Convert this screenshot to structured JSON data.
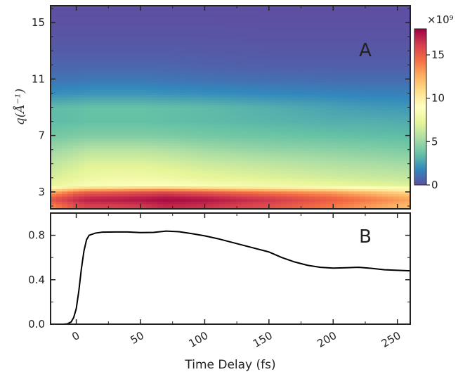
{
  "chart_data": [
    {
      "type": "heatmap",
      "panel_label": "A",
      "ylabel": "q(Å⁻¹)",
      "xlim": [
        -20,
        260
      ],
      "ylim": [
        1.8,
        16.2
      ],
      "y_ticks": [
        3,
        7,
        11,
        15
      ],
      "colormap": "Spectral_r",
      "colorbar": {
        "min": 0,
        "max": 18,
        "ticks": [
          0,
          5,
          10,
          15
        ],
        "multiplier_label": "×10⁹"
      },
      "x_sample": [
        -20,
        0,
        10,
        30,
        50,
        70,
        100,
        150,
        200,
        230,
        260
      ],
      "q_sample": [
        2,
        2.5,
        3,
        3.5,
        4,
        5,
        6,
        7,
        8,
        9,
        10,
        11,
        12,
        13,
        14,
        15,
        16
      ],
      "intensity": [
        [
          13.5,
          15.5,
          16,
          16,
          16.2,
          16.8,
          16.5,
          15.5,
          14,
          13,
          12
        ],
        [
          15.5,
          16.8,
          17.2,
          17.3,
          17.5,
          17.8,
          17.5,
          16.5,
          15,
          14,
          13
        ],
        [
          12.5,
          14.5,
          15,
          15.2,
          15.5,
          15.8,
          15.2,
          14,
          13,
          12,
          11
        ],
        [
          7.5,
          8.2,
          8.5,
          8.6,
          8.8,
          8.8,
          8.5,
          8,
          7.5,
          7.2,
          7
        ],
        [
          6.8,
          7.4,
          7.8,
          8,
          8,
          7.8,
          7.4,
          7,
          6.6,
          6.4,
          6.2
        ],
        [
          6,
          6.6,
          7,
          7,
          7,
          6.8,
          6.4,
          6,
          5.6,
          5.4,
          5.2
        ],
        [
          5,
          5.5,
          5.8,
          5.8,
          5.8,
          5.6,
          5.2,
          4.8,
          4.6,
          4.4,
          4.2
        ],
        [
          4,
          4.2,
          4.3,
          4.3,
          4.3,
          4.2,
          4,
          3.8,
          3.6,
          3.5,
          3.4
        ],
        [
          3.4,
          3.5,
          3.6,
          3.6,
          3.6,
          3.5,
          3.4,
          3.2,
          3,
          3,
          2.9
        ],
        [
          3.4,
          3.5,
          3.6,
          3.6,
          3.6,
          3.5,
          3.4,
          3,
          2.6,
          2.4,
          2.3
        ],
        [
          2,
          2.1,
          2.2,
          2.2,
          2.2,
          2.1,
          2,
          1.8,
          1.7,
          1.6,
          1.6
        ],
        [
          1.2,
          1.2,
          1.3,
          1.3,
          1.3,
          1.2,
          1.1,
          1,
          0.9,
          0.9,
          0.9
        ],
        [
          0.7,
          0.7,
          0.7,
          0.7,
          0.7,
          0.7,
          0.6,
          0.5,
          0.5,
          0.5,
          0.5
        ],
        [
          0.4,
          0.4,
          0.4,
          0.4,
          0.4,
          0.4,
          0.35,
          0.3,
          0.3,
          0.3,
          0.3
        ],
        [
          0.2,
          0.2,
          0.2,
          0.2,
          0.2,
          0.2,
          0.2,
          0.15,
          0.15,
          0.15,
          0.15
        ],
        [
          0.08,
          0.08,
          0.08,
          0.08,
          0.08,
          0.08,
          0.08,
          0.06,
          0.06,
          0.06,
          0.06
        ],
        [
          0,
          0,
          0,
          0,
          0,
          0,
          0,
          0,
          0,
          0,
          0
        ]
      ]
    },
    {
      "type": "line",
      "panel_label": "B",
      "xlabel": "Time Delay (fs)",
      "xlim": [
        -20,
        260
      ],
      "ylim": [
        0,
        1
      ],
      "x_ticks": [
        0,
        50,
        100,
        150,
        200,
        250
      ],
      "y_ticks": [
        0.0,
        0.4,
        0.8
      ],
      "y_tick_labels": [
        "0.0",
        "0.4",
        "0.8"
      ],
      "series": [
        {
          "color": "#000000",
          "x": [
            -20,
            -10,
            -7,
            -4,
            -2,
            0,
            2,
            4,
            6,
            8,
            10,
            15,
            20,
            30,
            40,
            50,
            60,
            70,
            80,
            90,
            100,
            110,
            120,
            130,
            140,
            150,
            160,
            170,
            180,
            190,
            200,
            210,
            220,
            230,
            240,
            250,
            260
          ],
          "y": [
            0,
            0,
            0.003,
            0.02,
            0.06,
            0.14,
            0.3,
            0.5,
            0.66,
            0.76,
            0.8,
            0.82,
            0.828,
            0.83,
            0.83,
            0.824,
            0.826,
            0.838,
            0.832,
            0.815,
            0.795,
            0.77,
            0.74,
            0.71,
            0.68,
            0.65,
            0.6,
            0.56,
            0.53,
            0.512,
            0.505,
            0.508,
            0.512,
            0.502,
            0.49,
            0.485,
            0.48
          ]
        }
      ]
    }
  ]
}
